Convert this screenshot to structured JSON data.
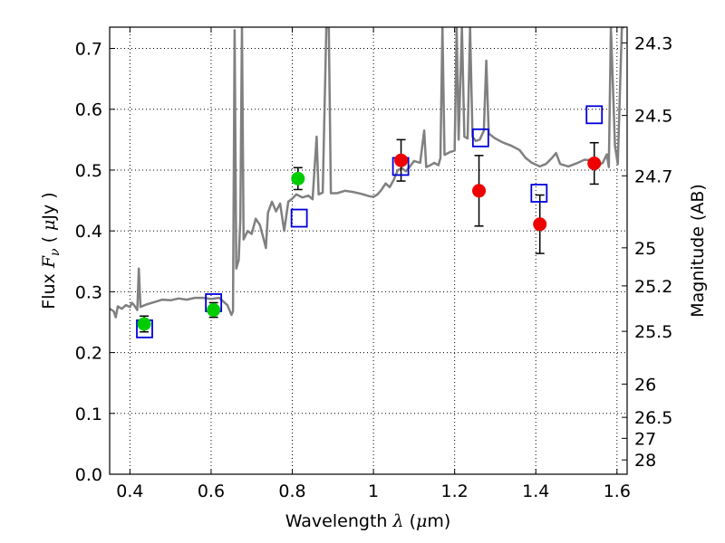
{
  "chart_data": {
    "type": "scatter",
    "xlabel_prefix": "Wavelength",
    "xlabel_symbol": "λ",
    "xlabel_unit_open": "(",
    "xlabel_unit_mu": "μ",
    "xlabel_unit_rest": "m)",
    "ylabel_prefix": "Flux",
    "ylabel_symbol_main": "F",
    "ylabel_symbol_sub": "ν",
    "ylabel_unit_open": "(",
    "ylabel_unit_mu": "μ",
    "ylabel_unit_rest": "Jy )",
    "y2label": "Magnitude (AB)",
    "xlim": [
      0.35,
      1.625
    ],
    "ylim": [
      0.0,
      0.735
    ],
    "grid": true,
    "x_ticks": [
      0.4,
      0.6,
      0.8,
      1.0,
      1.2,
      1.4,
      1.6
    ],
    "x_tick_labels": [
      "0.4",
      "0.6",
      "0.8",
      "1",
      "1.2",
      "1.4",
      "1.6"
    ],
    "y_ticks": [
      0.0,
      0.1,
      0.2,
      0.3,
      0.4,
      0.5,
      0.6,
      0.7
    ],
    "y_tick_labels": [
      "0.0",
      "0.1",
      "0.2",
      "0.3",
      "0.4",
      "0.5",
      "0.6",
      "0.7"
    ],
    "y2_ticks": [
      {
        "label": "24.3",
        "flux": 0.7091
      },
      {
        "label": "24.5",
        "flux": 0.5898
      },
      {
        "label": "24.7",
        "flux": 0.4906
      },
      {
        "label": "25",
        "flux": 0.3722
      },
      {
        "label": "25.2",
        "flux": 0.3096
      },
      {
        "label": "25.5",
        "flux": 0.2349
      },
      {
        "label": "26",
        "flux": 0.1482
      },
      {
        "label": "26.5",
        "flux": 0.0935
      },
      {
        "label": "27",
        "flux": 0.059
      },
      {
        "label": "28",
        "flux": 0.0235
      }
    ],
    "colors": {
      "model": "#808080",
      "green": "#00cc00",
      "red": "#ee0000",
      "blue": "#0000dd",
      "errorbar": "#000000"
    },
    "model_spectrum": [
      [
        0.35,
        0.272
      ],
      [
        0.36,
        0.268
      ],
      [
        0.365,
        0.258
      ],
      [
        0.37,
        0.276
      ],
      [
        0.38,
        0.272
      ],
      [
        0.39,
        0.278
      ],
      [
        0.4,
        0.275
      ],
      [
        0.405,
        0.282
      ],
      [
        0.41,
        0.278
      ],
      [
        0.418,
        0.27
      ],
      [
        0.422,
        0.338
      ],
      [
        0.426,
        0.275
      ],
      [
        0.44,
        0.279
      ],
      [
        0.46,
        0.283
      ],
      [
        0.48,
        0.287
      ],
      [
        0.5,
        0.286
      ],
      [
        0.52,
        0.289
      ],
      [
        0.54,
        0.287
      ],
      [
        0.56,
        0.29
      ],
      [
        0.58,
        0.29
      ],
      [
        0.6,
        0.288
      ],
      [
        0.62,
        0.29
      ],
      [
        0.64,
        0.278
      ],
      [
        0.65,
        0.262
      ],
      [
        0.654,
        0.268
      ],
      [
        0.658,
        0.73
      ],
      [
        0.662,
        0.338
      ],
      [
        0.668,
        0.352
      ],
      [
        0.672,
        0.42
      ],
      [
        0.676,
        0.735
      ],
      [
        0.68,
        0.386
      ],
      [
        0.69,
        0.4
      ],
      [
        0.7,
        0.395
      ],
      [
        0.71,
        0.42
      ],
      [
        0.72,
        0.41
      ],
      [
        0.73,
        0.385
      ],
      [
        0.735,
        0.372
      ],
      [
        0.74,
        0.43
      ],
      [
        0.75,
        0.448
      ],
      [
        0.76,
        0.432
      ],
      [
        0.77,
        0.445
      ],
      [
        0.78,
        0.4
      ],
      [
        0.79,
        0.448
      ],
      [
        0.8,
        0.453
      ],
      [
        0.81,
        0.46
      ],
      [
        0.825,
        0.455
      ],
      [
        0.84,
        0.458
      ],
      [
        0.85,
        0.452
      ],
      [
        0.86,
        0.555
      ],
      [
        0.865,
        0.46
      ],
      [
        0.875,
        0.463
      ],
      [
        0.884,
        0.735
      ],
      [
        0.89,
        0.735
      ],
      [
        0.895,
        0.462
      ],
      [
        0.91,
        0.462
      ],
      [
        0.93,
        0.466
      ],
      [
        0.95,
        0.464
      ],
      [
        0.97,
        0.461
      ],
      [
        0.99,
        0.457
      ],
      [
        1.0,
        0.456
      ],
      [
        1.01,
        0.46
      ],
      [
        1.02,
        0.468
      ],
      [
        1.03,
        0.478
      ],
      [
        1.04,
        0.472
      ],
      [
        1.05,
        0.484
      ],
      [
        1.06,
        0.5
      ],
      [
        1.07,
        0.503
      ],
      [
        1.08,
        0.498
      ],
      [
        1.09,
        0.506
      ],
      [
        1.1,
        0.515
      ],
      [
        1.115,
        0.512
      ],
      [
        1.125,
        0.565
      ],
      [
        1.13,
        0.505
      ],
      [
        1.14,
        0.508
      ],
      [
        1.15,
        0.512
      ],
      [
        1.16,
        0.508
      ],
      [
        1.165,
        0.52
      ],
      [
        1.17,
        0.735
      ],
      [
        1.175,
        0.525
      ],
      [
        1.19,
        0.53
      ],
      [
        1.2,
        0.532
      ],
      [
        1.205,
        0.735
      ],
      [
        1.21,
        0.55
      ],
      [
        1.218,
        0.735
      ],
      [
        1.224,
        0.555
      ],
      [
        1.232,
        0.552
      ],
      [
        1.238,
        0.735
      ],
      [
        1.244,
        0.555
      ],
      [
        1.252,
        0.548
      ],
      [
        1.262,
        0.55
      ],
      [
        1.272,
        0.565
      ],
      [
        1.278,
        0.68
      ],
      [
        1.284,
        0.56
      ],
      [
        1.3,
        0.552
      ],
      [
        1.32,
        0.545
      ],
      [
        1.34,
        0.54
      ],
      [
        1.36,
        0.533
      ],
      [
        1.375,
        0.52
      ],
      [
        1.39,
        0.512
      ],
      [
        1.41,
        0.506
      ],
      [
        1.425,
        0.51
      ],
      [
        1.44,
        0.52
      ],
      [
        1.45,
        0.528
      ],
      [
        1.46,
        0.51
      ],
      [
        1.48,
        0.506
      ],
      [
        1.5,
        0.511
      ],
      [
        1.52,
        0.517
      ],
      [
        1.54,
        0.516
      ],
      [
        1.555,
        0.508
      ],
      [
        1.565,
        0.512
      ],
      [
        1.575,
        0.526
      ],
      [
        1.58,
        0.505
      ],
      [
        1.585,
        0.735
      ],
      [
        1.595,
        0.54
      ],
      [
        1.602,
        0.51
      ],
      [
        1.612,
        0.735
      ],
      [
        1.618,
        0.735
      ]
    ],
    "observed_green": [
      {
        "x": 0.435,
        "y": 0.247,
        "err": 0.013
      },
      {
        "x": 0.606,
        "y": 0.27,
        "err": 0.012
      },
      {
        "x": 0.814,
        "y": 0.486,
        "err": 0.018
      }
    ],
    "observed_red": [
      {
        "x": 1.068,
        "y": 0.516,
        "err": 0.034
      },
      {
        "x": 1.26,
        "y": 0.466,
        "err": 0.058
      },
      {
        "x": 1.41,
        "y": 0.411,
        "err": 0.048
      },
      {
        "x": 1.544,
        "y": 0.511,
        "err": 0.034
      }
    ],
    "model_photometry": [
      {
        "x": 0.436,
        "y": 0.239
      },
      {
        "x": 0.606,
        "y": 0.282
      },
      {
        "x": 0.817,
        "y": 0.421
      },
      {
        "x": 1.067,
        "y": 0.506
      },
      {
        "x": 1.264,
        "y": 0.553
      },
      {
        "x": 1.408,
        "y": 0.462
      },
      {
        "x": 1.544,
        "y": 0.591
      }
    ]
  }
}
